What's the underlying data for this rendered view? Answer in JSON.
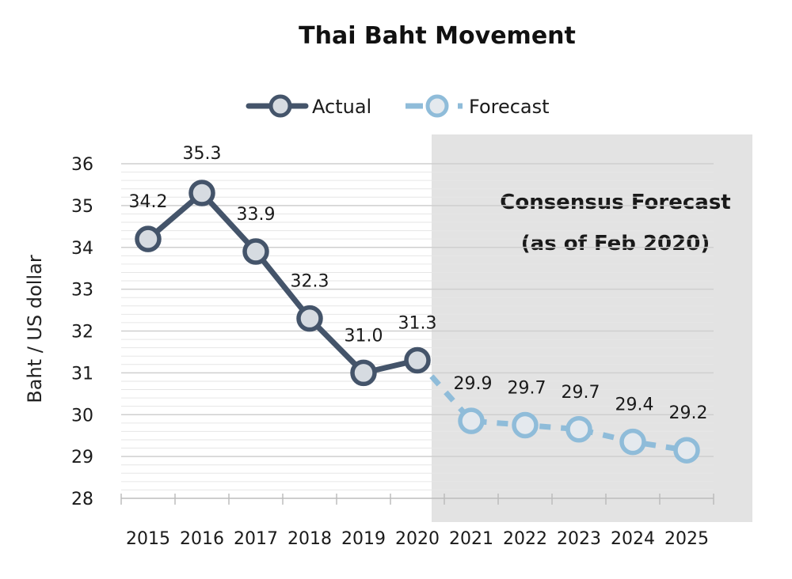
{
  "chart_data": {
    "type": "line",
    "title": "Thai Baht Movement",
    "ylabel": "Baht / US dollar",
    "xlabel": "",
    "ylim": [
      28,
      36
    ],
    "yticks": [
      28,
      29,
      30,
      31,
      32,
      33,
      34,
      35,
      36
    ],
    "minor_grid_step": 0.2,
    "grid": true,
    "legend_position": "top-center",
    "categories": [
      "2015",
      "2016",
      "2017",
      "2018",
      "2019",
      "2020",
      "2021",
      "2022",
      "2023",
      "2024",
      "2025"
    ],
    "series": [
      {
        "name": "Actual",
        "style": "solid",
        "color": "#44546a",
        "x": [
          "2015",
          "2016",
          "2017",
          "2018",
          "2019",
          "2020"
        ],
        "values": [
          34.2,
          35.3,
          33.9,
          32.3,
          31.0,
          31.3
        ],
        "labels": [
          "34.2",
          "35.3",
          "33.9",
          "32.3",
          "31.0",
          "31.3"
        ]
      },
      {
        "name": "Forecast",
        "style": "dashed",
        "color": "#8fbcd9",
        "x": [
          "2020",
          "2021",
          "2022",
          "2023",
          "2024",
          "2025"
        ],
        "values": [
          31.3,
          29.85,
          29.75,
          29.65,
          29.35,
          29.15
        ],
        "labels": [
          "",
          "29.9",
          "29.7",
          "29.7",
          "29.4",
          "29.2"
        ]
      }
    ],
    "shaded_region": {
      "from": "2021",
      "to": "2025",
      "color": "#e3e3e3",
      "label_lines": [
        "Consensus Forecast",
        "(as of Feb 2020)"
      ]
    }
  }
}
